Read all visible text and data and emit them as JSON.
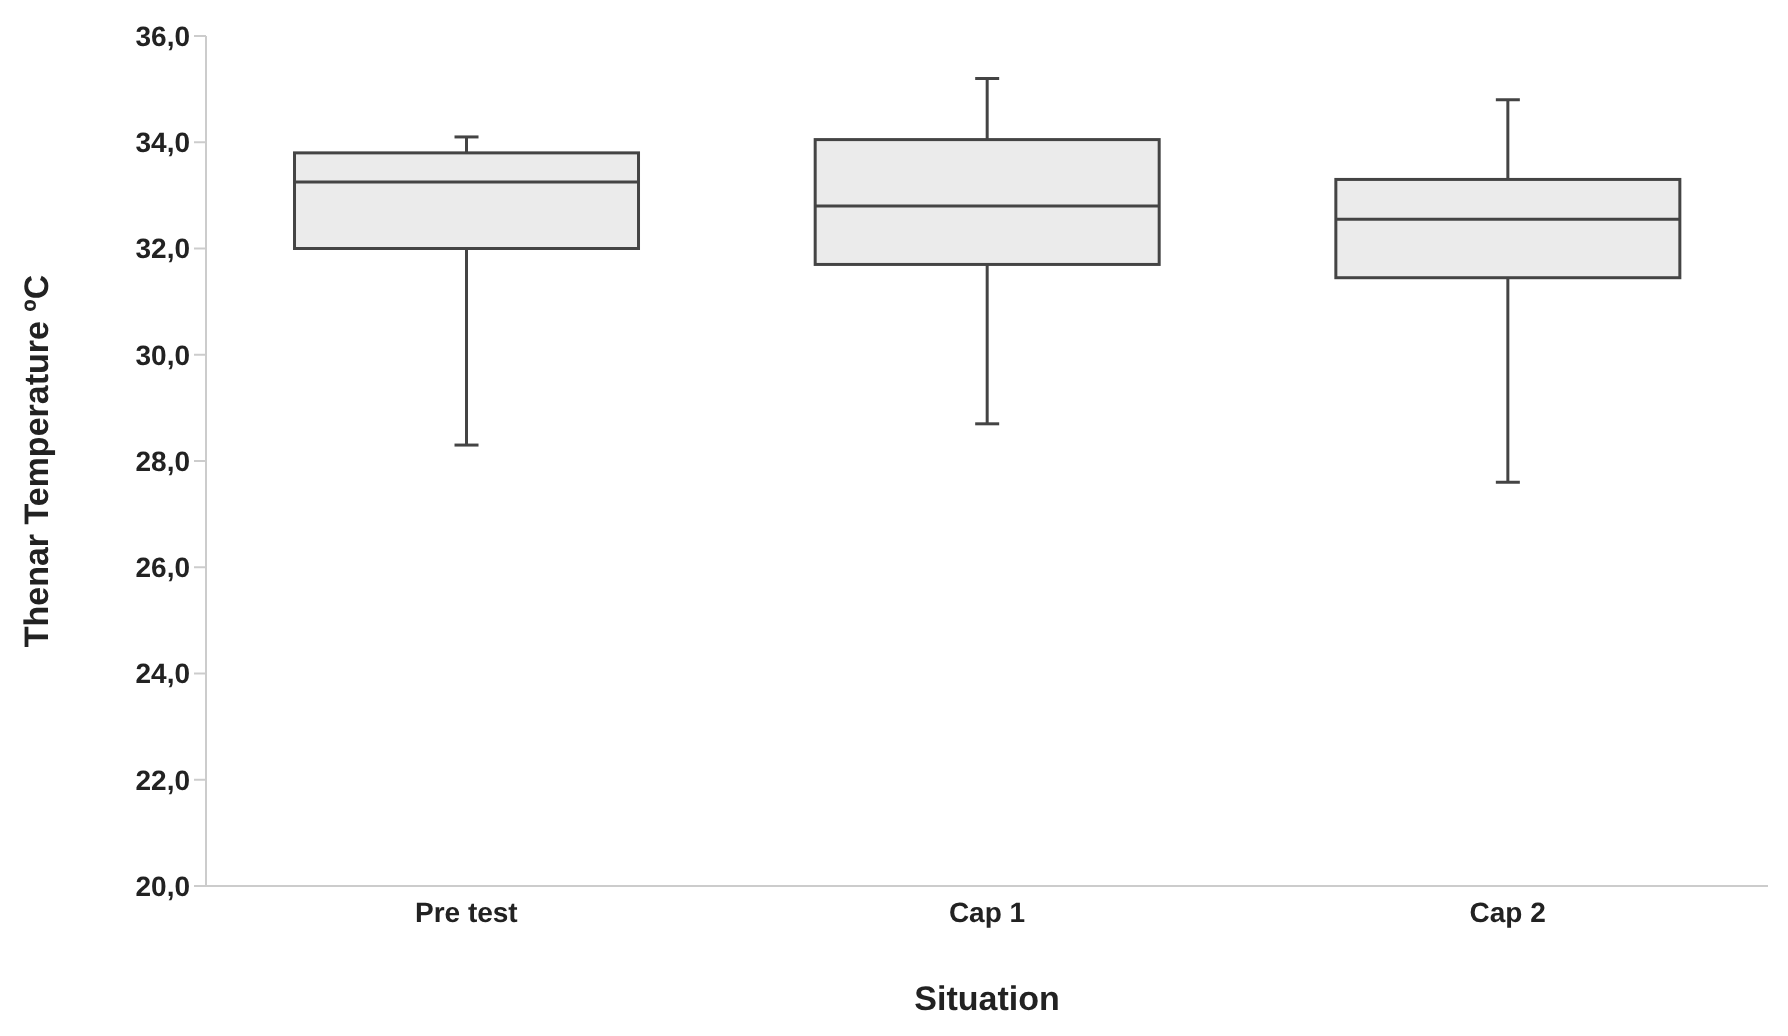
{
  "chart_data": {
    "type": "box",
    "xlabel": "Situation",
    "ylabel": "Thenar Temperature ºC",
    "categories": [
      "Pre test",
      "Cap 1",
      "Cap 2"
    ],
    "boxes": [
      {
        "low": 28.3,
        "q1": 32.0,
        "median": 33.25,
        "q3": 33.8,
        "high": 34.1
      },
      {
        "low": 28.7,
        "q1": 31.7,
        "median": 32.8,
        "q3": 34.05,
        "high": 35.2
      },
      {
        "low": 27.6,
        "q1": 31.45,
        "median": 32.55,
        "q3": 33.3,
        "high": 34.8
      }
    ],
    "color": "#ebebeb",
    "ylim": [
      20,
      36
    ],
    "yticks": [
      {
        "value": 20,
        "label": "20,0"
      },
      {
        "value": 22,
        "label": "22,0"
      },
      {
        "value": 24,
        "label": "24,0"
      },
      {
        "value": 26,
        "label": "26,0"
      },
      {
        "value": 28,
        "label": "28,0"
      },
      {
        "value": 30,
        "label": "30,0"
      },
      {
        "value": 32,
        "label": "32,0"
      },
      {
        "value": 34,
        "label": "34,0"
      },
      {
        "value": 36,
        "label": "36,0"
      }
    ],
    "grid": false,
    "legend": false
  }
}
